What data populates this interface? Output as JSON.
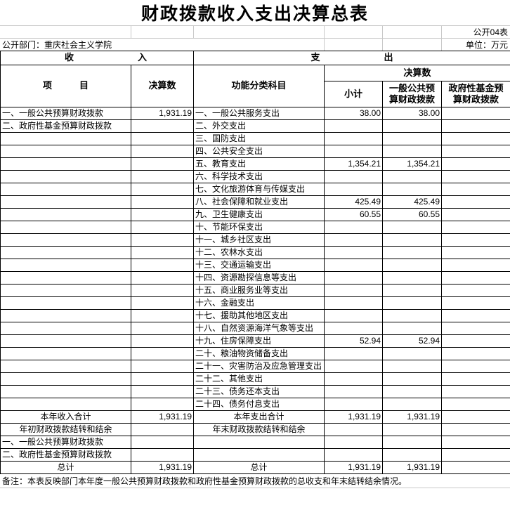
{
  "title": "财政拨款收入支出决算总表",
  "meta": {
    "table_code": "公开04表",
    "department": "公开部门：重庆社会主义学院",
    "unit": "单位：万元"
  },
  "headers": {
    "income_section": "收入",
    "expense_section": "支出",
    "item": "项目",
    "final_amount": "决算数",
    "function_category": "功能分类科目",
    "final_amount_group": "决算数",
    "subtotal": "小计",
    "general_budget": "一般公共预\n算财政拨款",
    "gov_fund": "政府性基金预\n算财政拨款"
  },
  "rows": [
    {
      "in": "一、一般公共预算财政拨款",
      "inv": "1,931.19",
      "ex": "一、一般公共服务支出",
      "sub": "38.00",
      "gen": "38.00",
      "fund": ""
    },
    {
      "in": "二、政府性基金预算财政拨款",
      "inv": "",
      "ex": "二、外交支出",
      "sub": "",
      "gen": "",
      "fund": ""
    },
    {
      "in": "",
      "inv": "",
      "ex": "三、国防支出",
      "sub": "",
      "gen": "",
      "fund": ""
    },
    {
      "in": "",
      "inv": "",
      "ex": "四、公共安全支出",
      "sub": "",
      "gen": "",
      "fund": ""
    },
    {
      "in": "",
      "inv": "",
      "ex": "五、教育支出",
      "sub": "1,354.21",
      "gen": "1,354.21",
      "fund": ""
    },
    {
      "in": "",
      "inv": "",
      "ex": "六、科学技术支出",
      "sub": "",
      "gen": "",
      "fund": ""
    },
    {
      "in": "",
      "inv": "",
      "ex": "七、文化旅游体育与传媒支出",
      "sub": "",
      "gen": "",
      "fund": ""
    },
    {
      "in": "",
      "inv": "",
      "ex": "八、社会保障和就业支出",
      "sub": "425.49",
      "gen": "425.49",
      "fund": ""
    },
    {
      "in": "",
      "inv": "",
      "ex": "九、卫生健康支出",
      "sub": "60.55",
      "gen": "60.55",
      "fund": ""
    },
    {
      "in": "",
      "inv": "",
      "ex": "十、节能环保支出",
      "sub": "",
      "gen": "",
      "fund": ""
    },
    {
      "in": "",
      "inv": "",
      "ex": "十一、城乡社区支出",
      "sub": "",
      "gen": "",
      "fund": ""
    },
    {
      "in": "",
      "inv": "",
      "ex": "十二、农林水支出",
      "sub": "",
      "gen": "",
      "fund": ""
    },
    {
      "in": "",
      "inv": "",
      "ex": "十三、交通运输支出",
      "sub": "",
      "gen": "",
      "fund": ""
    },
    {
      "in": "",
      "inv": "",
      "ex": "十四、资源勘探信息等支出",
      "sub": "",
      "gen": "",
      "fund": ""
    },
    {
      "in": "",
      "inv": "",
      "ex": "十五、商业服务业等支出",
      "sub": "",
      "gen": "",
      "fund": ""
    },
    {
      "in": "",
      "inv": "",
      "ex": "十六、金融支出",
      "sub": "",
      "gen": "",
      "fund": ""
    },
    {
      "in": "",
      "inv": "",
      "ex": "十七、援助其他地区支出",
      "sub": "",
      "gen": "",
      "fund": ""
    },
    {
      "in": "",
      "inv": "",
      "ex": "十八、自然资源海洋气象等支出",
      "sub": "",
      "gen": "",
      "fund": ""
    },
    {
      "in": "",
      "inv": "",
      "ex": "十九、住房保障支出",
      "sub": "52.94",
      "gen": "52.94",
      "fund": ""
    },
    {
      "in": "",
      "inv": "",
      "ex": "二十、粮油物资储备支出",
      "sub": "",
      "gen": "",
      "fund": ""
    },
    {
      "in": "",
      "inv": "",
      "ex": "二十一、灾害防治及应急管理支出",
      "sub": "",
      "gen": "",
      "fund": ""
    },
    {
      "in": "",
      "inv": "",
      "ex": "二十二、其他支出",
      "sub": "",
      "gen": "",
      "fund": ""
    },
    {
      "in": "",
      "inv": "",
      "ex": "二十三、债务还本支出",
      "sub": "",
      "gen": "",
      "fund": ""
    },
    {
      "in": "",
      "inv": "",
      "ex": "二十四、债务付息支出",
      "sub": "",
      "gen": "",
      "fund": ""
    }
  ],
  "summary": {
    "income_total_label": "本年收入合计",
    "income_total_value": "1,931.19",
    "expense_total_label": "本年支出合计",
    "expense_total_sub": "1,931.19",
    "expense_total_gen": "1,931.19",
    "expense_total_fund": "",
    "carryover_income_label": "年初财政拨款结转和结余",
    "carryover_expense_label": "年末财政拨款结转和结余",
    "carryover_item1": "一、一般公共预算财政拨款",
    "carryover_item2": "二、政府性基金预算财政拨款",
    "grand_total_income_label": "总计",
    "grand_total_income_value": "1,931.19",
    "grand_total_expense_label": "总计",
    "grand_total_expense_sub": "1,931.19",
    "grand_total_expense_gen": "1,931.19",
    "grand_total_expense_fund": ""
  },
  "note": "备注：本表反映部门本年度一般公共预算财政拨款和政府性基金预算财政拨款的总收支和年末结转结余情况。"
}
